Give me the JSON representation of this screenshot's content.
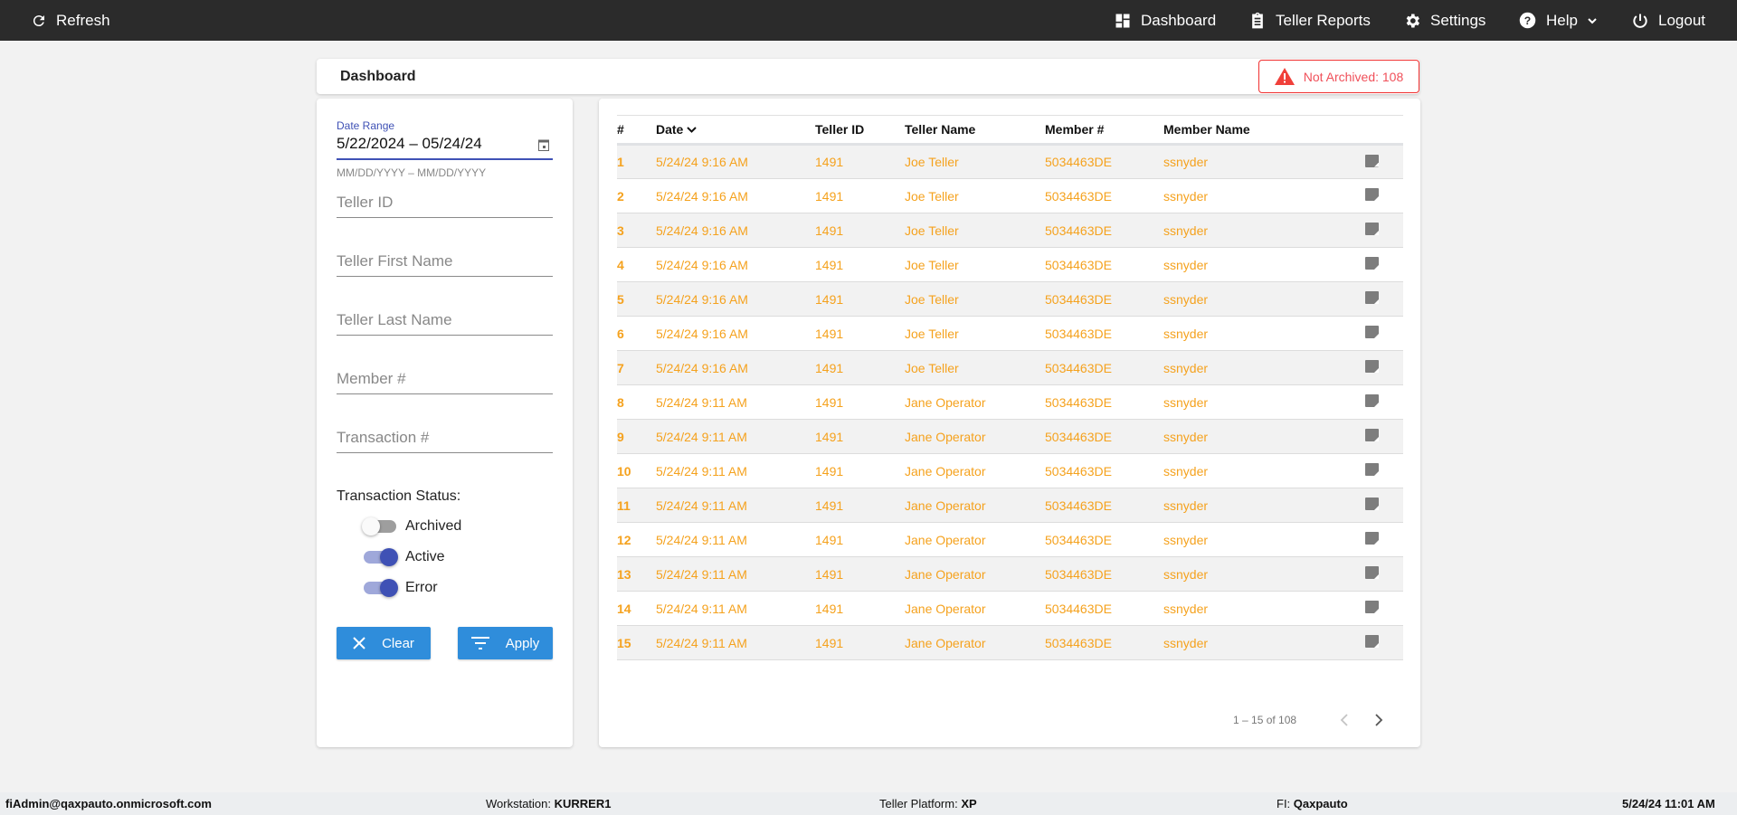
{
  "topbar": {
    "refresh": "Refresh",
    "nav": [
      {
        "label": "Dashboard",
        "icon": "dashboard-icon"
      },
      {
        "label": "Teller Reports",
        "icon": "clipboard-icon"
      },
      {
        "label": "Settings",
        "icon": "gear-icon"
      },
      {
        "label": "Help",
        "icon": "help-icon"
      },
      {
        "label": "Logout",
        "icon": "power-icon"
      }
    ]
  },
  "header": {
    "title": "Dashboard",
    "badge": "Not Archived: 108"
  },
  "filters": {
    "date_label": "Date Range",
    "date_value": "5/22/2024 – 05/24/24",
    "date_hint": "MM/DD/YYYY – MM/DD/YYYY",
    "teller_id": "Teller ID",
    "first_name": "Teller First Name",
    "last_name": "Teller Last Name",
    "member": "Member #",
    "transaction": "Transaction #",
    "status_label": "Transaction Status:",
    "toggles": [
      {
        "label": "Archived",
        "on": false
      },
      {
        "label": "Active",
        "on": true
      },
      {
        "label": "Error",
        "on": true
      }
    ],
    "clear": "Clear",
    "apply": "Apply"
  },
  "table": {
    "columns": [
      "#",
      "Date",
      "Teller ID",
      "Teller Name",
      "Member #",
      "Member Name"
    ],
    "rows": [
      [
        "1",
        "5/24/24 9:16 AM",
        "1491",
        "Joe Teller",
        "5034463DE",
        "ssnyder"
      ],
      [
        "2",
        "5/24/24 9:16 AM",
        "1491",
        "Joe Teller",
        "5034463DE",
        "ssnyder"
      ],
      [
        "3",
        "5/24/24 9:16 AM",
        "1491",
        "Joe Teller",
        "5034463DE",
        "ssnyder"
      ],
      [
        "4",
        "5/24/24 9:16 AM",
        "1491",
        "Joe Teller",
        "5034463DE",
        "ssnyder"
      ],
      [
        "5",
        "5/24/24 9:16 AM",
        "1491",
        "Joe Teller",
        "5034463DE",
        "ssnyder"
      ],
      [
        "6",
        "5/24/24 9:16 AM",
        "1491",
        "Joe Teller",
        "5034463DE",
        "ssnyder"
      ],
      [
        "7",
        "5/24/24 9:16 AM",
        "1491",
        "Joe Teller",
        "5034463DE",
        "ssnyder"
      ],
      [
        "8",
        "5/24/24 9:11 AM",
        "1491",
        "Jane Operator",
        "5034463DE",
        "ssnyder"
      ],
      [
        "9",
        "5/24/24 9:11 AM",
        "1491",
        "Jane Operator",
        "5034463DE",
        "ssnyder"
      ],
      [
        "10",
        "5/24/24 9:11 AM",
        "1491",
        "Jane Operator",
        "5034463DE",
        "ssnyder"
      ],
      [
        "11",
        "5/24/24 9:11 AM",
        "1491",
        "Jane Operator",
        "5034463DE",
        "ssnyder"
      ],
      [
        "12",
        "5/24/24 9:11 AM",
        "1491",
        "Jane Operator",
        "5034463DE",
        "ssnyder"
      ],
      [
        "13",
        "5/24/24 9:11 AM",
        "1491",
        "Jane Operator",
        "5034463DE",
        "ssnyder"
      ],
      [
        "14",
        "5/24/24 9:11 AM",
        "1491",
        "Jane Operator",
        "5034463DE",
        "ssnyder"
      ],
      [
        "15",
        "5/24/24 9:11 AM",
        "1491",
        "Jane Operator",
        "5034463DE",
        "ssnyder"
      ]
    ],
    "pagination": "1 – 15 of 108"
  },
  "footer": {
    "user": "fiAdmin@qaxpauto.onmicrosoft.com",
    "workstation_label": "Workstation: ",
    "workstation": "KURRER1",
    "platform_label": "Teller Platform: ",
    "platform": "XP",
    "fi_label": "FI: ",
    "fi": "Qaxpauto",
    "datetime": "5/24/24 11:01 AM"
  },
  "colors": {
    "accent": "#3f51b5",
    "orange": "#f5a21e",
    "button": "#2f8ddb",
    "alert": "#f03030"
  }
}
